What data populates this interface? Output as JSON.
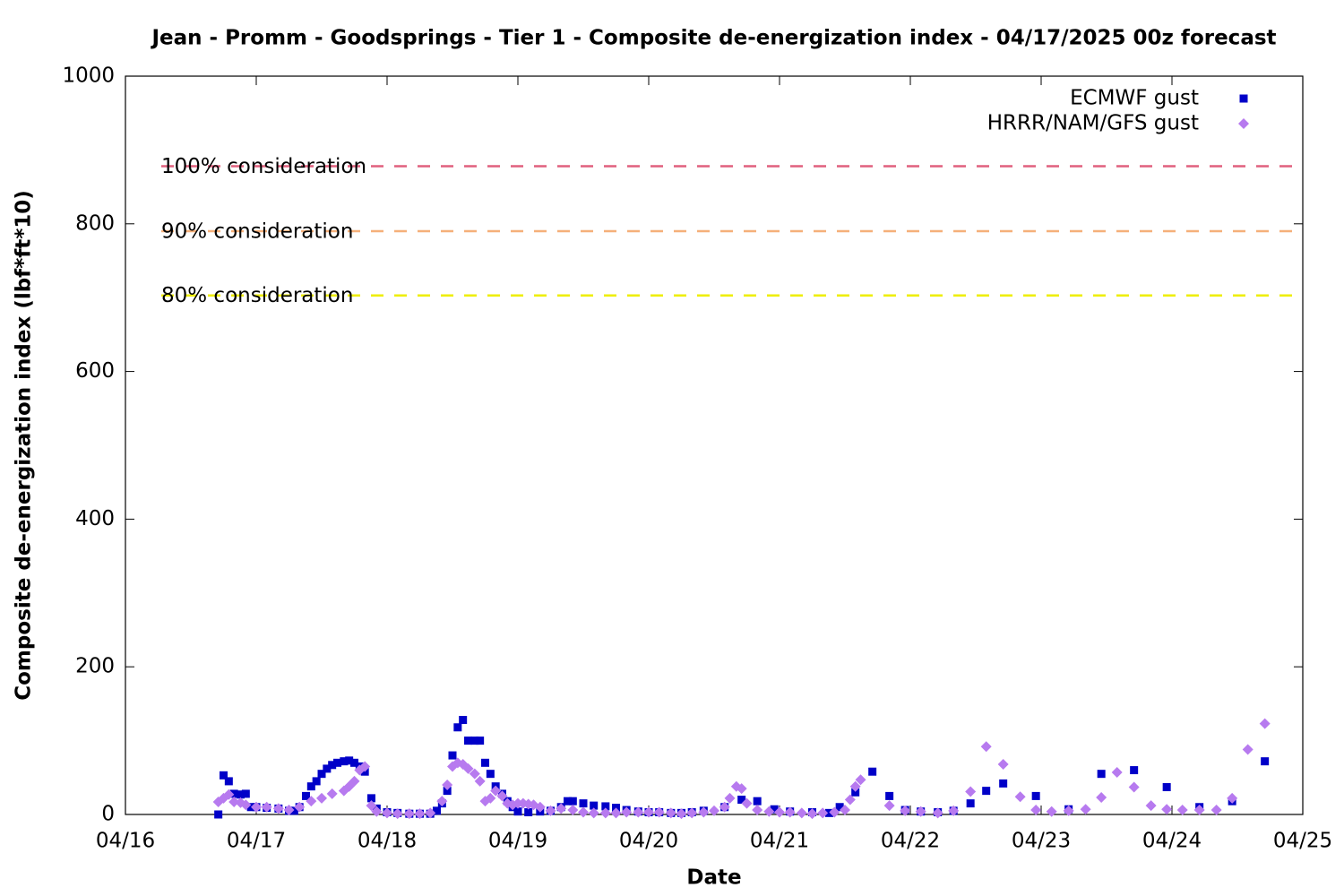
{
  "chart_data": {
    "type": "scatter",
    "title": "Jean - Promm - Goodsprings - Tier 1 - Composite de-energization index - 04/17/2025 00z forecast",
    "xlabel": "Date",
    "ylabel": "Composite de-energization index (lbf*ft*10)",
    "xlim": [
      0,
      9
    ],
    "xticks": [
      {
        "value": 0,
        "label": "04/16"
      },
      {
        "value": 1,
        "label": "04/17"
      },
      {
        "value": 2,
        "label": "04/18"
      },
      {
        "value": 3,
        "label": "04/19"
      },
      {
        "value": 4,
        "label": "04/20"
      },
      {
        "value": 5,
        "label": "04/21"
      },
      {
        "value": 6,
        "label": "04/22"
      },
      {
        "value": 7,
        "label": "04/23"
      },
      {
        "value": 8,
        "label": "04/24"
      },
      {
        "value": 9,
        "label": "04/25"
      }
    ],
    "ylim": [
      0,
      1000
    ],
    "yticks": [
      0,
      200,
      400,
      600,
      800,
      1000
    ],
    "legend": "top-right",
    "reference_lines": [
      {
        "label": "100% consideration",
        "value": 878,
        "color": "#e0607e"
      },
      {
        "label": "90% consideration",
        "value": 790,
        "color": "#f5b07a"
      },
      {
        "label": "80% consideration",
        "value": 703,
        "color": "#eeee00"
      }
    ],
    "series": [
      {
        "name": "ECMWF gust",
        "color": "#0000c8",
        "marker": "square",
        "x": [
          0.71,
          0.75,
          0.79,
          0.83,
          0.88,
          0.92,
          0.96,
          1.0,
          1.08,
          1.17,
          1.25,
          1.29,
          1.33,
          1.38,
          1.42,
          1.46,
          1.5,
          1.54,
          1.58,
          1.62,
          1.67,
          1.71,
          1.75,
          1.79,
          1.83,
          1.88,
          1.92,
          2.0,
          2.08,
          2.17,
          2.25,
          2.33,
          2.38,
          2.42,
          2.46,
          2.5,
          2.54,
          2.58,
          2.62,
          2.67,
          2.71,
          2.75,
          2.79,
          2.83,
          2.88,
          2.92,
          2.96,
          3.0,
          3.08,
          3.17,
          3.25,
          3.33,
          3.38,
          3.42,
          3.5,
          3.58,
          3.67,
          3.75,
          3.83,
          3.92,
          4.0,
          4.08,
          4.17,
          4.25,
          4.33,
          4.42,
          4.58,
          4.71,
          4.83,
          4.96,
          5.08,
          5.25,
          5.38,
          5.46,
          5.58,
          5.71,
          5.84,
          5.96,
          6.08,
          6.21,
          6.33,
          6.46,
          6.58,
          6.71,
          6.96,
          7.21,
          7.46,
          7.71,
          7.96,
          8.21,
          8.46,
          8.71
        ],
        "values": [
          0,
          53,
          45,
          28,
          27,
          28,
          10,
          10,
          9,
          8,
          5,
          5,
          10,
          25,
          38,
          45,
          55,
          62,
          67,
          70,
          72,
          73,
          70,
          65,
          58,
          22,
          8,
          3,
          2,
          1,
          1,
          1,
          5,
          15,
          32,
          80,
          118,
          128,
          100,
          100,
          100,
          70,
          55,
          38,
          28,
          18,
          10,
          4,
          3,
          4,
          5,
          10,
          18,
          18,
          15,
          12,
          11,
          9,
          6,
          4,
          3,
          3,
          2,
          2,
          3,
          5,
          10,
          20,
          18,
          7,
          4,
          3,
          2,
          10,
          30,
          58,
          25,
          6,
          4,
          3,
          5,
          15,
          32,
          42,
          25,
          7,
          55,
          60,
          37,
          10,
          18,
          72
        ]
      },
      {
        "name": "HRRR/NAM/GFS gust",
        "color": "#b77aef",
        "marker": "diamond",
        "x": [
          0.71,
          0.75,
          0.79,
          0.83,
          0.88,
          0.92,
          1.0,
          1.08,
          1.17,
          1.25,
          1.33,
          1.42,
          1.5,
          1.58,
          1.67,
          1.71,
          1.75,
          1.79,
          1.83,
          1.88,
          1.92,
          2.0,
          2.08,
          2.17,
          2.25,
          2.33,
          2.42,
          2.46,
          2.5,
          2.54,
          2.58,
          2.62,
          2.67,
          2.71,
          2.75,
          2.79,
          2.83,
          2.88,
          2.92,
          2.96,
          3.0,
          3.04,
          3.08,
          3.12,
          3.17,
          3.25,
          3.33,
          3.42,
          3.5,
          3.58,
          3.67,
          3.75,
          3.83,
          3.92,
          4.0,
          4.08,
          4.17,
          4.25,
          4.33,
          4.42,
          4.5,
          4.58,
          4.62,
          4.67,
          4.71,
          4.75,
          4.83,
          4.92,
          5.0,
          5.08,
          5.17,
          5.25,
          5.33,
          5.42,
          5.5,
          5.54,
          5.58,
          5.62,
          5.84,
          5.96,
          6.08,
          6.21,
          6.33,
          6.46,
          6.58,
          6.71,
          6.84,
          6.96,
          7.08,
          7.21,
          7.34,
          7.46,
          7.58,
          7.71,
          7.84,
          7.96,
          8.08,
          8.21,
          8.34,
          8.46,
          8.58,
          8.71
        ],
        "values": [
          17,
          22,
          27,
          17,
          16,
          13,
          10,
          10,
          8,
          6,
          10,
          18,
          22,
          28,
          32,
          38,
          45,
          60,
          65,
          12,
          4,
          2,
          1,
          1,
          1,
          2,
          18,
          40,
          65,
          70,
          68,
          62,
          55,
          45,
          18,
          22,
          32,
          25,
          15,
          13,
          15,
          15,
          14,
          13,
          10,
          5,
          8,
          6,
          3,
          2,
          2,
          2,
          3,
          3,
          3,
          3,
          2,
          1,
          2,
          3,
          5,
          10,
          22,
          38,
          35,
          15,
          6,
          4,
          3,
          3,
          2,
          1,
          2,
          3,
          6,
          20,
          38,
          47,
          12,
          5,
          4,
          2,
          5,
          31,
          92,
          68,
          24,
          6,
          4,
          5,
          7,
          23,
          57,
          37,
          12,
          7,
          6,
          6,
          6,
          22,
          88,
          123
        ]
      }
    ]
  }
}
